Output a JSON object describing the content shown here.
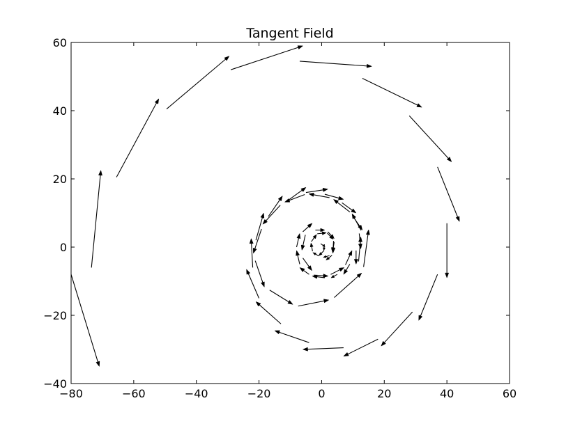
{
  "chart_data": {
    "type": "quiver",
    "title": "Tangent Field",
    "xlabel": "",
    "ylabel": "",
    "xlim": [
      -80,
      60
    ],
    "ylim": [
      -40,
      60
    ],
    "xticks": [
      -80,
      -60,
      -40,
      -20,
      0,
      20,
      40,
      60
    ],
    "yticks": [
      -40,
      -20,
      0,
      20,
      40,
      60
    ],
    "xtick_labels": [
      "−80",
      "−60",
      "−40",
      "−20",
      "0",
      "20",
      "40",
      "60"
    ],
    "ytick_labels": [
      "−40",
      "−20",
      "0",
      "20",
      "40",
      "60"
    ],
    "grid": false,
    "arrow_color": "#000000",
    "arrows": [
      {
        "x0": -0.3,
        "y0": 1.0,
        "x1": 1.1,
        "y1": 0.1
      },
      {
        "x0": 0.9,
        "y0": 0.8,
        "x1": 0.7,
        "y1": -1.0
      },
      {
        "x0": 0.8,
        "y0": -1.0,
        "x1": -0.9,
        "y1": -2.5
      },
      {
        "x0": -0.9,
        "y0": -2.6,
        "x1": -2.8,
        "y1": -1.6
      },
      {
        "x0": -2.9,
        "y0": -1.2,
        "x1": -3.4,
        "y1": 1.2
      },
      {
        "x0": -3.3,
        "y0": 1.6,
        "x1": -1.6,
        "y1": 3.7
      },
      {
        "x0": -1.4,
        "y0": 3.9,
        "x1": 1.5,
        "y1": 4.2
      },
      {
        "x0": 1.8,
        "y0": 4.1,
        "x1": 3.7,
        "y1": 2.3
      },
      {
        "x0": 3.8,
        "y0": 1.8,
        "x1": 3.6,
        "y1": -1.8
      },
      {
        "x0": 3.3,
        "y0": -2.4,
        "x1": 1.4,
        "y1": -3.8
      },
      {
        "x0": -5.2,
        "y0": 3.6,
        "x1": -6.3,
        "y1": -0.9
      },
      {
        "x0": -6.0,
        "y0": -3.2,
        "x1": -3.1,
        "y1": -6.9
      },
      {
        "x0": -2.5,
        "y0": -8.2,
        "x1": 2.1,
        "y1": -8.5
      },
      {
        "x0": 2.9,
        "y0": -8.0,
        "x1": 7.2,
        "y1": -6.0
      },
      {
        "x0": 7.6,
        "y0": -5.2,
        "x1": 9.7,
        "y1": -1.0
      },
      {
        "x0": 11.8,
        "y0": -4.2,
        "x1": 12.5,
        "y1": 3.0
      },
      {
        "x0": 12.6,
        "y0": 4.9,
        "x1": 9.7,
        "y1": 9.8
      },
      {
        "x0": 9.0,
        "y0": 10.3,
        "x1": 3.8,
        "y1": 14.0
      },
      {
        "x0": 2.5,
        "y0": 14.5,
        "x1": -4.1,
        "y1": 15.6
      },
      {
        "x0": -5.4,
        "y0": 15.4,
        "x1": -11.8,
        "y1": 13.2
      },
      {
        "x0": -13.2,
        "y0": 12.3,
        "x1": -18.8,
        "y1": 6.7
      },
      {
        "x0": -19.2,
        "y0": 5.3,
        "x1": -21.8,
        "y1": -1.8
      },
      {
        "x0": -21.2,
        "y0": -4.0,
        "x1": -18.3,
        "y1": -11.7
      },
      {
        "x0": -16.6,
        "y0": -12.6,
        "x1": -9.2,
        "y1": -16.8
      },
      {
        "x0": -7.5,
        "y0": -17.3,
        "x1": 2.3,
        "y1": -15.5
      },
      {
        "x0": 4.0,
        "y0": -14.8,
        "x1": 12.8,
        "y1": -7.6
      },
      {
        "x0": 13.4,
        "y0": -5.8,
        "x1": 15.0,
        "y1": 5.1
      },
      {
        "x0": 29.0,
        "y0": -19.0,
        "x1": 19.0,
        "y1": -29.0
      },
      {
        "x0": 18.0,
        "y0": -27.0,
        "x1": 7.0,
        "y1": -32.0
      },
      {
        "x0": 7.0,
        "y0": -29.5,
        "x1": -6.0,
        "y1": -30.0
      },
      {
        "x0": -4.0,
        "y0": -28.0,
        "x1": -15.0,
        "y1": -24.5
      },
      {
        "x0": -13.0,
        "y0": -22.5,
        "x1": -21.0,
        "y1": -16.0
      },
      {
        "x0": -20.0,
        "y0": -15.0,
        "x1": -24.0,
        "y1": -6.5
      },
      {
        "x0": -22.0,
        "y0": -6.0,
        "x1": -22.5,
        "y1": 2.5
      },
      {
        "x0": -21.0,
        "y0": 2.0,
        "x1": -18.5,
        "y1": 10.0
      },
      {
        "x0": -17.0,
        "y0": 9.0,
        "x1": -12.5,
        "y1": 15.0
      },
      {
        "x0": -11.0,
        "y0": 13.5,
        "x1": -5.0,
        "y1": 17.5
      },
      {
        "x0": -5.0,
        "y0": 16.0,
        "x1": 2.0,
        "y1": 17.0
      },
      {
        "x0": 1.0,
        "y0": 15.5,
        "x1": 7.0,
        "y1": 14.0
      },
      {
        "x0": 6.5,
        "y0": 13.0,
        "x1": 11.0,
        "y1": 10.0
      },
      {
        "x0": 10.0,
        "y0": 9.0,
        "x1": 13.0,
        "y1": 5.0
      },
      {
        "x0": 12.0,
        "y0": 4.0,
        "x1": 12.5,
        "y1": -0.5
      },
      {
        "x0": 11.0,
        "y0": -1.0,
        "x1": 11.0,
        "y1": -5.0
      },
      {
        "x0": 9.0,
        "y0": -5.0,
        "x1": 7.0,
        "y1": -8.0
      },
      {
        "x0": 5.0,
        "y0": -8.0,
        "x1": 3.0,
        "y1": -9.0
      },
      {
        "x0": 1.0,
        "y0": -9.0,
        "x1": -3.0,
        "y1": -8.5
      },
      {
        "x0": -4.0,
        "y0": -8.0,
        "x1": -7.0,
        "y1": -6.0
      },
      {
        "x0": -7.0,
        "y0": -5.0,
        "x1": -8.0,
        "y1": -1.0
      },
      {
        "x0": -8.0,
        "y0": 0.0,
        "x1": -7.0,
        "y1": 4.0
      },
      {
        "x0": -6.0,
        "y0": 4.5,
        "x1": -3.0,
        "y1": 7.0
      },
      {
        "x0": -2.0,
        "y0": 5.0,
        "x1": 1.0,
        "y1": 5.0
      },
      {
        "x0": 2.0,
        "y0": 4.5,
        "x1": 4.0,
        "y1": 2.5
      },
      {
        "x0": 4.0,
        "y0": 1.5,
        "x1": 3.5,
        "y1": -1.5
      },
      {
        "x0": 2.5,
        "y0": -2.5,
        "x1": 0.5,
        "y1": -3.0
      },
      {
        "x0": 40.0,
        "y0": 7.0,
        "x1": 40.0,
        "y1": -9.0
      },
      {
        "x0": 37.0,
        "y0": -8.0,
        "x1": 31.0,
        "y1": -21.5
      },
      {
        "x0": 37.0,
        "y0": 23.5,
        "x1": 44.0,
        "y1": 7.5
      },
      {
        "x0": 28.0,
        "y0": 38.5,
        "x1": 41.5,
        "y1": 25.0
      },
      {
        "x0": 13.0,
        "y0": 49.5,
        "x1": 32.0,
        "y1": 41.0
      },
      {
        "x0": -7.0,
        "y0": 54.5,
        "x1": 16.0,
        "y1": 53.0
      },
      {
        "x0": -29.0,
        "y0": 52.0,
        "x1": -6.0,
        "y1": 59.0
      },
      {
        "x0": -49.5,
        "y0": 40.5,
        "x1": -29.5,
        "y1": 56.0
      },
      {
        "x0": -65.5,
        "y0": 20.5,
        "x1": -52.0,
        "y1": 43.5
      },
      {
        "x0": -73.5,
        "y0": -6.0,
        "x1": -70.5,
        "y1": 22.5
      },
      {
        "x0": -80.0,
        "y0": -8.0,
        "x1": -71.0,
        "y1": -35.0
      }
    ]
  }
}
